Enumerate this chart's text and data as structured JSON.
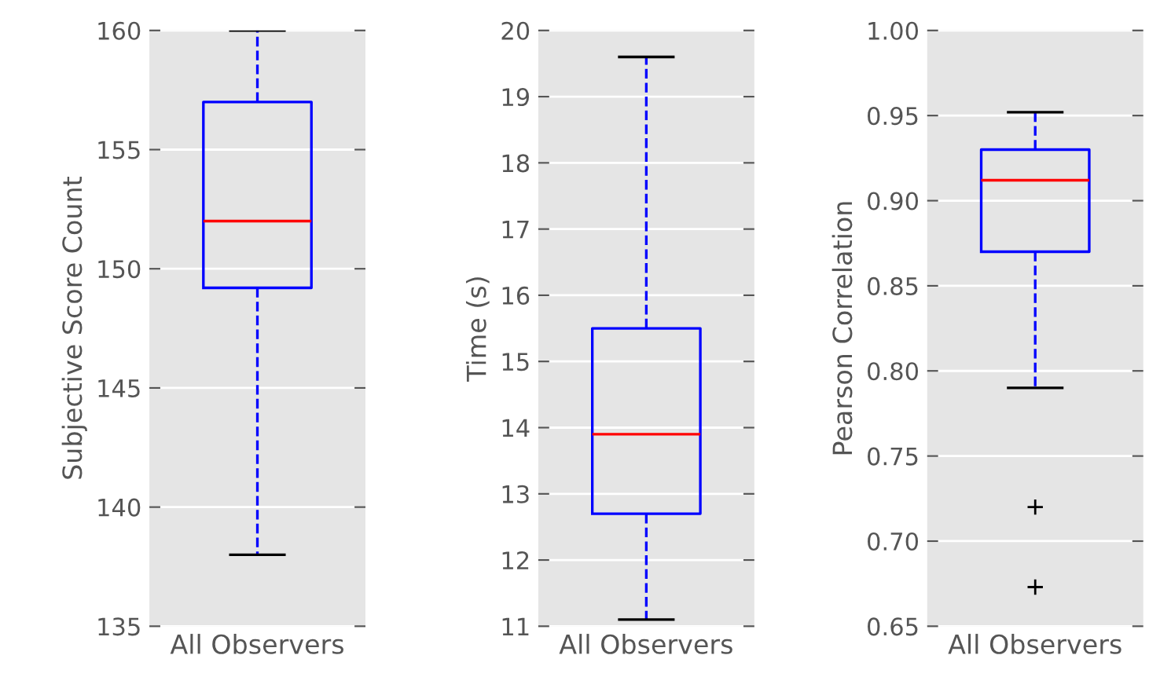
{
  "chart_data": [
    {
      "type": "box",
      "categories": [
        "All Observers"
      ],
      "ylabel": "Subjective Score Count",
      "ylim": [
        135,
        160
      ],
      "yticks": [
        135,
        140,
        145,
        150,
        155,
        160
      ],
      "grid": "y",
      "boxes": [
        {
          "low": 138,
          "q1": 149.2,
          "median": 152,
          "q3": 157,
          "high": 160
        }
      ]
    },
    {
      "type": "box",
      "categories": [
        "All Observers"
      ],
      "ylabel": "Time (s)",
      "ylim": [
        11,
        20
      ],
      "yticks": [
        11,
        12,
        13,
        14,
        15,
        16,
        17,
        18,
        19,
        20
      ],
      "grid": "y",
      "boxes": [
        {
          "low": 11.1,
          "q1": 12.7,
          "median": 13.9,
          "q3": 15.5,
          "high": 19.6
        }
      ]
    },
    {
      "type": "box",
      "categories": [
        "All Observers"
      ],
      "ylabel": "Pearson Correlation",
      "ylim": [
        0.65,
        1.0
      ],
      "yticks": [
        {
          "value": 0.65,
          "label": "0.65"
        },
        {
          "value": 0.7,
          "label": "0.70"
        },
        {
          "value": 0.75,
          "label": "0.75"
        },
        {
          "value": 0.8,
          "label": "0.80"
        },
        {
          "value": 0.85,
          "label": "0.85"
        },
        {
          "value": 0.9,
          "label": "0.90"
        },
        {
          "value": 0.95,
          "label": "0.95"
        },
        {
          "value": 1.0,
          "label": "1.00"
        }
      ],
      "grid": "y",
      "boxes": [
        {
          "low": 0.79,
          "q1": 0.87,
          "median": 0.912,
          "q3": 0.93,
          "high": 0.952,
          "outliers": [
            0.72,
            0.673
          ]
        }
      ]
    }
  ]
}
